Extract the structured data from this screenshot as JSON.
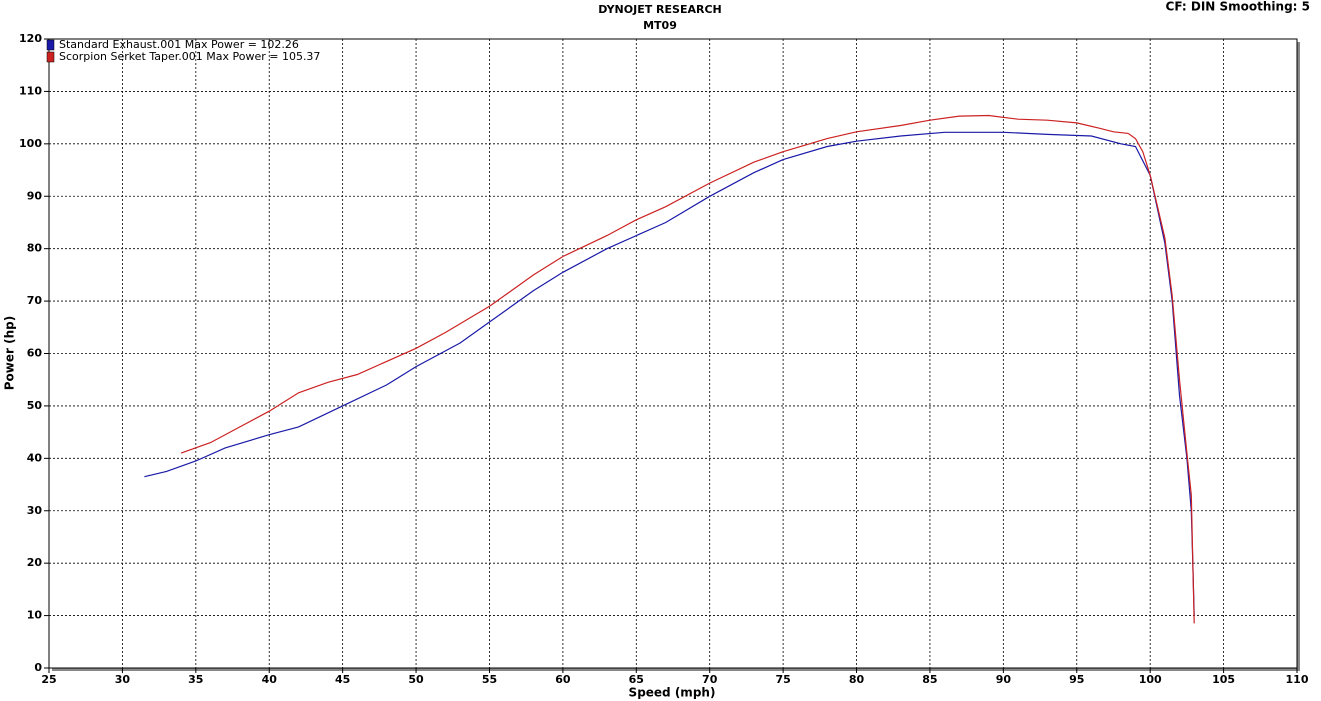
{
  "chart_data": {
    "type": "line",
    "title": "DYNOJET RESEARCH",
    "subtitle": "MT09",
    "annotation": "CF: DIN  Smoothing: 5",
    "x_label": "Speed (mph)",
    "y_label": "Power (hp)",
    "xlim": [
      25,
      110
    ],
    "xticks": [
      25,
      30,
      35,
      40,
      45,
      50,
      55,
      60,
      65,
      70,
      75,
      80,
      85,
      90,
      95,
      100,
      105,
      110
    ],
    "ylim": [
      0,
      120
    ],
    "yticks": [
      0,
      10,
      20,
      30,
      40,
      50,
      60,
      70,
      80,
      90,
      100,
      110,
      120
    ],
    "grid": true,
    "legend": "top-left",
    "series": [
      {
        "name": "Standard Exhaust.001 Max Power = 102.26",
        "color": "#1a1aa8",
        "x": [
          31.5,
          33,
          35,
          37,
          40,
          42,
          45,
          48,
          50,
          53,
          55,
          58,
          60,
          63,
          65,
          67,
          70,
          73,
          75,
          78,
          80,
          83,
          86,
          90,
          93,
          96,
          98,
          99,
          100,
          101,
          101.5,
          102,
          102.5,
          102.8,
          102.9,
          103
        ],
        "values": [
          36.5,
          37.5,
          39.5,
          42,
          44.5,
          46,
          50,
          54,
          57.5,
          62,
          66,
          72,
          75.5,
          80,
          82.5,
          85,
          90,
          94.5,
          97,
          99.5,
          100.5,
          101.5,
          102.2,
          102.2,
          101.8,
          101.5,
          100,
          99.5,
          94,
          81,
          70,
          52,
          40,
          30,
          20,
          10
        ]
      },
      {
        "name": "Scorpion Serket Taper.001 Max Power = 105.37",
        "color": "#cc2222",
        "x": [
          34,
          36,
          38,
          40,
          42,
          44,
          46,
          48,
          50,
          52,
          55,
          58,
          60,
          63,
          65,
          67,
          70,
          73,
          75,
          78,
          80,
          83,
          85,
          87,
          89,
          91,
          93,
          95,
          96.5,
          97.5,
          98.5,
          99,
          99.5,
          100,
          101,
          101.5,
          102,
          102.5,
          102.8,
          103
        ],
        "values": [
          41,
          43,
          46,
          49,
          52.5,
          54.5,
          56,
          58.5,
          61,
          64,
          69,
          75,
          78.5,
          82.5,
          85.5,
          88,
          92.5,
          96.5,
          98.5,
          101,
          102.3,
          103.5,
          104.5,
          105.3,
          105.4,
          104.7,
          104.5,
          104,
          103,
          102.3,
          102,
          101,
          98.5,
          94,
          82,
          71,
          55,
          41,
          33,
          8.5
        ]
      }
    ]
  }
}
